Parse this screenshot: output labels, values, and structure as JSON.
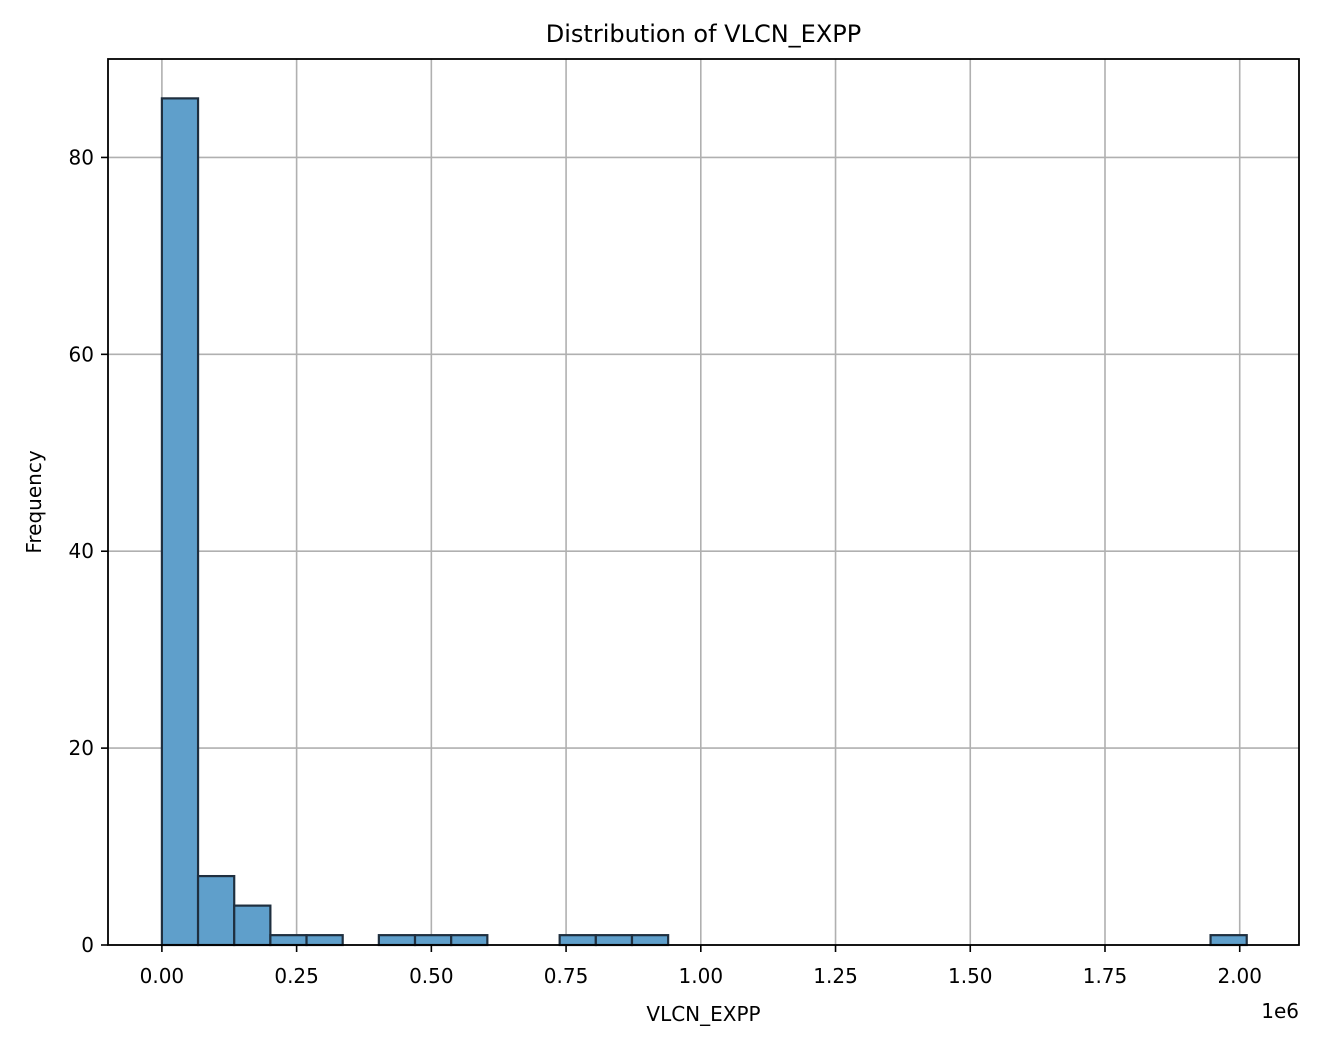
{
  "chart_data": {
    "type": "bar",
    "title": "Distribution of VLCN_EXPP",
    "xlabel": "VLCN_EXPP",
    "ylabel": "Frequency",
    "x_offset_label": "1e6",
    "xlim": [
      -0.1,
      2.11
    ],
    "ylim": [
      0,
      90
    ],
    "xticks": [
      0.0,
      0.25,
      0.5,
      0.75,
      1.0,
      1.25,
      1.5,
      1.75,
      2.0
    ],
    "xtick_labels": [
      "0.00",
      "0.25",
      "0.50",
      "0.75",
      "1.00",
      "1.25",
      "1.50",
      "1.75",
      "2.00"
    ],
    "yticks": [
      0,
      20,
      40,
      60,
      80
    ],
    "ytick_labels": [
      "0",
      "20",
      "40",
      "60",
      "80"
    ],
    "grid": true,
    "bar_color": "#5f9fcb",
    "bar_edge_color": "#1f2f3f",
    "bin_edges": [
      0.0,
      0.0671,
      0.1342,
      0.2013,
      0.2684,
      0.3355,
      0.4026,
      0.4697,
      0.5368,
      0.6039,
      0.671,
      0.7381,
      0.8052,
      0.8723,
      0.9394,
      1.0065,
      1.0736,
      1.1407,
      1.2078,
      1.2749,
      1.342,
      1.4091,
      1.4762,
      1.5433,
      1.6104,
      1.6775,
      1.7446,
      1.8117,
      1.8788,
      1.9459,
      2.013
    ],
    "counts": [
      86,
      7,
      4,
      1,
      1,
      0,
      1,
      1,
      1,
      0,
      0,
      1,
      1,
      1,
      0,
      0,
      0,
      0,
      0,
      0,
      0,
      0,
      0,
      0,
      0,
      0,
      0,
      0,
      0,
      1
    ]
  }
}
